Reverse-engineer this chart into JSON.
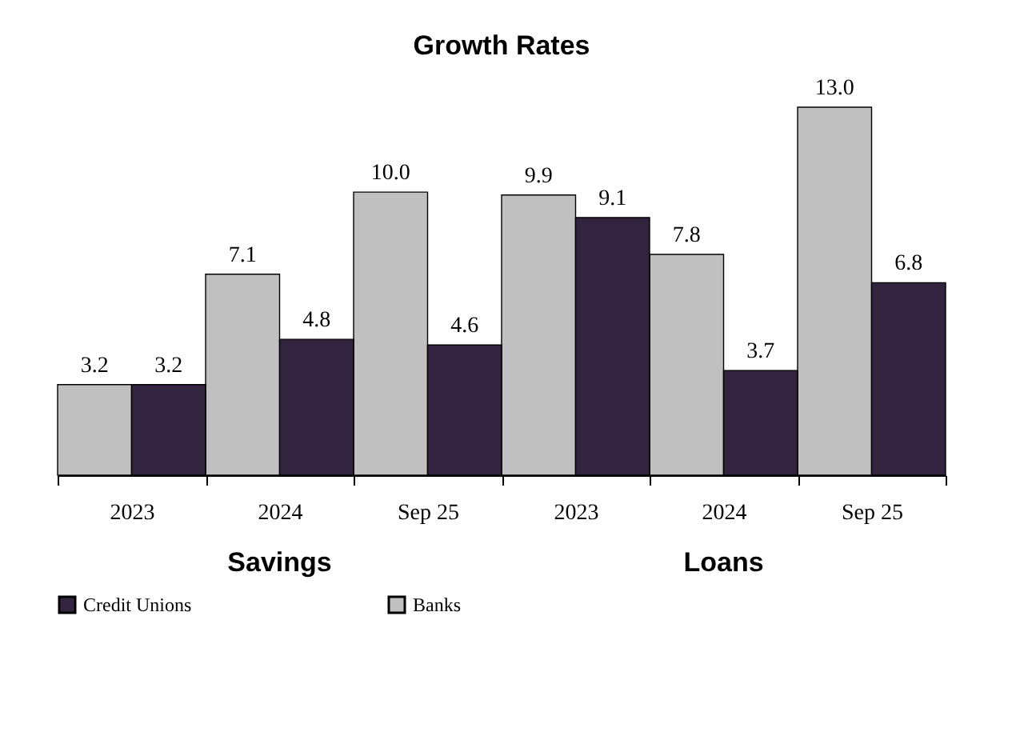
{
  "chart_data": {
    "type": "bar",
    "title": "Growth Rates",
    "categories": [
      "2023",
      "2024",
      "Sep 25",
      "2023",
      "2024",
      "Sep 25"
    ],
    "series": [
      {
        "name": "Banks",
        "color": "#c0c0c0",
        "values": [
          3.2,
          7.1,
          10.0,
          9.9,
          7.8,
          13.0
        ],
        "value_labels": [
          "3.2",
          "7.1",
          "10.0",
          "9.9",
          "7.8",
          "13.0"
        ]
      },
      {
        "name": "Credit Unions",
        "color": "#32243f",
        "values": [
          3.2,
          4.8,
          4.6,
          9.1,
          3.7,
          6.8
        ],
        "value_labels": [
          "3.2",
          "4.8",
          "4.6",
          "9.1",
          "3.7",
          "6.8"
        ]
      }
    ],
    "annotations": [
      "Savings",
      "Loans"
    ],
    "legend": "bottom",
    "grid": false
  }
}
